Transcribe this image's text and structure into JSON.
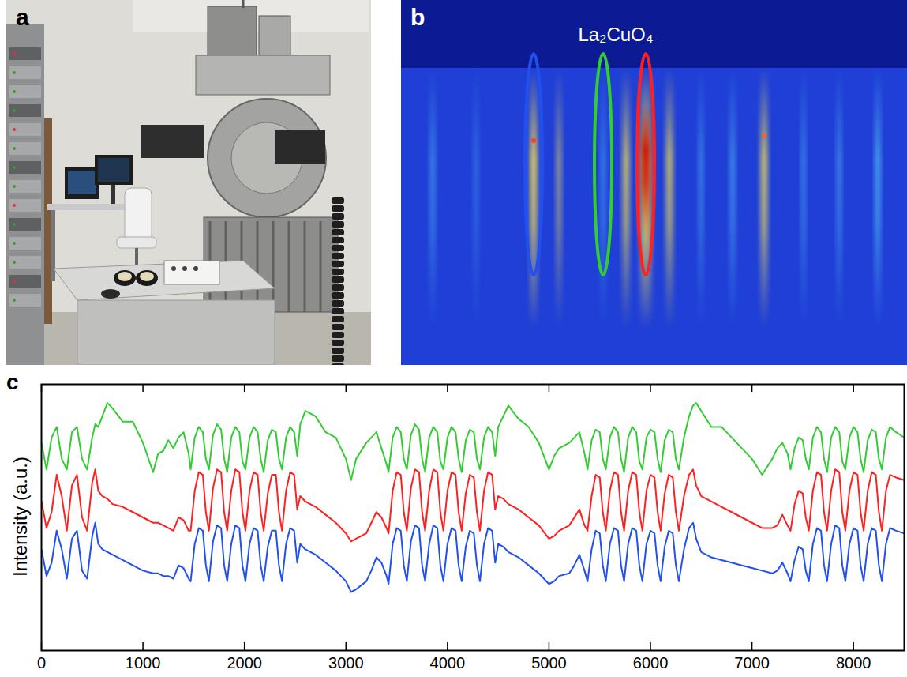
{
  "panels": {
    "a": {
      "letter": "a"
    },
    "b": {
      "letter": "b",
      "label": "La₂CuO₄"
    },
    "c": {
      "letter": "c"
    }
  },
  "chart_data": {
    "type": "line",
    "y_label": "Intensity (a.u.)",
    "x": [
      0,
      50,
      100,
      150,
      200,
      250,
      300,
      350,
      400,
      450,
      500,
      530,
      560,
      600,
      650,
      700,
      800,
      900,
      1000,
      1100,
      1150,
      1200,
      1250,
      1300,
      1350,
      1400,
      1450,
      1470,
      1510,
      1550,
      1590,
      1620,
      1650,
      1690,
      1730,
      1770,
      1800,
      1830,
      1870,
      1910,
      1950,
      1980,
      2010,
      2050,
      2090,
      2130,
      2160,
      2190,
      2230,
      2270,
      2310,
      2340,
      2370,
      2410,
      2450,
      2490,
      2520,
      2550,
      2600,
      2700,
      2800,
      2900,
      3000,
      3050,
      3100,
      3200,
      3250,
      3300,
      3350,
      3400,
      3420,
      3460,
      3500,
      3540,
      3570,
      3600,
      3640,
      3680,
      3720,
      3750,
      3780,
      3820,
      3860,
      3900,
      3930,
      3960,
      4000,
      4040,
      4080,
      4110,
      4140,
      4180,
      4220,
      4260,
      4290,
      4320,
      4360,
      4400,
      4440,
      4470,
      4500,
      4550,
      4600,
      4700,
      4800,
      4900,
      5000,
      5050,
      5100,
      5200,
      5250,
      5300,
      5350,
      5380,
      5420,
      5460,
      5500,
      5530,
      5560,
      5600,
      5640,
      5680,
      5710,
      5740,
      5780,
      5820,
      5860,
      5890,
      5920,
      5960,
      6000,
      6040,
      6070,
      6100,
      6140,
      6180,
      6220,
      6250,
      6280,
      6330,
      6380,
      6420,
      6450,
      6500,
      6600,
      6700,
      6800,
      6900,
      7000,
      7100,
      7200,
      7250,
      7300,
      7350,
      7380,
      7420,
      7460,
      7500,
      7530,
      7560,
      7600,
      7640,
      7680,
      7710,
      7740,
      7780,
      7820,
      7860,
      7890,
      7920,
      7960,
      8000,
      8040,
      8070,
      8100,
      8140,
      8180,
      8220,
      8250,
      8280,
      8320,
      8360,
      8420,
      8500
    ],
    "series": [
      {
        "color": "#33cc33",
        "values": [
          78,
          68,
          80,
          84,
          72,
          68,
          82,
          84,
          72,
          68,
          80,
          85,
          84,
          88,
          93,
          91,
          86,
          86,
          78,
          67,
          74,
          75,
          79,
          76,
          80,
          82,
          74,
          68,
          80,
          84,
          82,
          72,
          68,
          81,
          85,
          83,
          72,
          67,
          80,
          84,
          82,
          71,
          68,
          80,
          84,
          82,
          72,
          67,
          79,
          83,
          82,
          72,
          68,
          80,
          84,
          82,
          73,
          85,
          90,
          88,
          82,
          80,
          72,
          64,
          72,
          78,
          80,
          82,
          76,
          70,
          67,
          80,
          84,
          82,
          72,
          68,
          81,
          85,
          83,
          72,
          67,
          80,
          84,
          82,
          71,
          68,
          80,
          84,
          82,
          72,
          67,
          79,
          83,
          82,
          72,
          68,
          80,
          84,
          82,
          73,
          84,
          88,
          92,
          87,
          84,
          78,
          68,
          73,
          76,
          78,
          80,
          82,
          74,
          68,
          79,
          83,
          82,
          72,
          68,
          80,
          84,
          82,
          72,
          67,
          80,
          84,
          82,
          71,
          68,
          80,
          83,
          82,
          72,
          67,
          79,
          83,
          82,
          72,
          68,
          80,
          88,
          92,
          93,
          90,
          84,
          84,
          80,
          76,
          72,
          66,
          72,
          76,
          78,
          74,
          68,
          76,
          80,
          79,
          72,
          68,
          80,
          84,
          82,
          72,
          67,
          80,
          84,
          82,
          71,
          68,
          80,
          84,
          82,
          72,
          67,
          79,
          83,
          82,
          72,
          68,
          80,
          84,
          82,
          80
        ]
      },
      {
        "color": "#ff2020",
        "values": [
          56,
          46,
          52,
          66,
          58,
          45,
          62,
          66,
          50,
          45,
          63,
          68,
          60,
          58,
          57,
          55,
          54,
          52,
          50,
          48,
          48,
          47,
          46,
          45,
          50,
          49,
          45,
          45,
          60,
          67,
          66,
          52,
          45,
          61,
          68,
          67,
          52,
          45,
          60,
          68,
          67,
          52,
          45,
          60,
          67,
          66,
          52,
          45,
          59,
          66,
          66,
          52,
          45,
          60,
          67,
          66,
          53,
          58,
          56,
          54,
          51,
          48,
          44,
          41,
          42,
          44,
          48,
          52,
          50,
          46,
          44,
          60,
          67,
          66,
          52,
          45,
          61,
          68,
          67,
          52,
          45,
          60,
          68,
          67,
          52,
          45,
          60,
          67,
          66,
          52,
          45,
          59,
          66,
          65,
          52,
          45,
          60,
          67,
          66,
          53,
          58,
          57,
          55,
          53,
          50,
          47,
          42,
          43,
          45,
          47,
          50,
          53,
          47,
          45,
          58,
          66,
          65,
          52,
          45,
          60,
          67,
          66,
          52,
          45,
          60,
          67,
          66,
          52,
          45,
          60,
          66,
          65,
          52,
          45,
          59,
          66,
          65,
          52,
          45,
          58,
          66,
          68,
          62,
          58,
          56,
          54,
          52,
          50,
          48,
          46,
          46,
          47,
          51,
          47,
          45,
          55,
          60,
          59,
          50,
          45,
          60,
          67,
          66,
          52,
          45,
          60,
          68,
          67,
          52,
          45,
          60,
          67,
          66,
          52,
          45,
          60,
          67,
          66,
          52,
          45,
          60,
          66,
          65,
          64
        ]
      },
      {
        "color": "#2050f0",
        "values": [
          38,
          28,
          33,
          45,
          38,
          27,
          42,
          45,
          30,
          27,
          43,
          48,
          40,
          38,
          37,
          36,
          34,
          32,
          30,
          29,
          29,
          28,
          28,
          27,
          32,
          31,
          27,
          26,
          40,
          46,
          45,
          32,
          26,
          41,
          47,
          46,
          32,
          26,
          40,
          47,
          46,
          32,
          26,
          40,
          46,
          45,
          32,
          26,
          39,
          45,
          45,
          32,
          26,
          40,
          46,
          45,
          33,
          40,
          38,
          36,
          33,
          30,
          26,
          22,
          23,
          26,
          30,
          35,
          33,
          28,
          25,
          40,
          46,
          45,
          32,
          26,
          41,
          47,
          46,
          32,
          26,
          40,
          47,
          46,
          32,
          26,
          40,
          46,
          45,
          32,
          26,
          39,
          45,
          44,
          32,
          26,
          40,
          46,
          45,
          33,
          40,
          39,
          37,
          35,
          32,
          29,
          25,
          26,
          28,
          29,
          32,
          36,
          30,
          26,
          38,
          45,
          44,
          32,
          26,
          40,
          46,
          45,
          32,
          26,
          40,
          46,
          45,
          32,
          26,
          40,
          45,
          44,
          32,
          26,
          39,
          45,
          44,
          32,
          26,
          38,
          46,
          48,
          42,
          37,
          35,
          34,
          33,
          32,
          31,
          30,
          29,
          30,
          33,
          29,
          26,
          34,
          39,
          38,
          30,
          26,
          40,
          46,
          45,
          32,
          26,
          40,
          47,
          46,
          32,
          26,
          40,
          46,
          45,
          32,
          26,
          40,
          46,
          45,
          32,
          26,
          40,
          46,
          45,
          44
        ]
      }
    ],
    "xlim": [
      0,
      8500
    ],
    "xticks": [
      0,
      1000,
      2000,
      3000,
      4000,
      5000,
      6000,
      7000,
      8000
    ],
    "ylim": [
      0,
      100
    ],
    "tick_labels": "x",
    "grid": false
  }
}
